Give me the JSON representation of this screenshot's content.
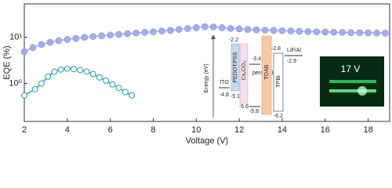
{
  "chart_data": {
    "type": "line",
    "x_label": "Voltage (V)",
    "y_label": "EQE (%)",
    "log_y": true,
    "xlim": [
      2,
      19
    ],
    "xticks": [
      2,
      4,
      6,
      8,
      10,
      12,
      14,
      16,
      18
    ],
    "ylim": [
      0.15,
      53
    ],
    "yticks": [
      {
        "value": 1,
        "label": "10⁰"
      },
      {
        "value": 10,
        "label": "10¹"
      }
    ],
    "series": [
      {
        "color": "#a9a9ee",
        "marker": "filled",
        "x": [
          2.0,
          2.4,
          2.8,
          3.2,
          3.6,
          4.0,
          4.4,
          4.8,
          5.2,
          5.6,
          6.0,
          6.4,
          6.8,
          7.2,
          7.6,
          8.0,
          8.4,
          8.8,
          9.2,
          9.6,
          10.0,
          10.4,
          10.8,
          11.2,
          11.6,
          12.0,
          12.4,
          12.8,
          13.2,
          13.6,
          14.0,
          14.4,
          14.8,
          15.2,
          15.6,
          16.0,
          16.4,
          16.8,
          17.2,
          17.6,
          18.0,
          18.4,
          18.8
        ],
        "values": [
          4.9,
          6.0,
          7.0,
          7.8,
          8.5,
          9.0,
          9.5,
          10.0,
          10.4,
          10.8,
          11.2,
          11.6,
          12.0,
          12.4,
          12.8,
          13.2,
          13.7,
          14.2,
          14.8,
          15.5,
          16.2,
          17.0,
          16.8,
          16.2,
          15.6,
          15.2,
          14.8,
          14.5,
          14.3,
          14.1,
          13.9,
          13.7,
          13.5,
          13.3,
          13.2,
          13.0,
          12.9,
          12.8,
          12.7,
          12.6,
          12.5,
          12.4,
          12.3
        ]
      },
      {
        "color": "#2a9fa8",
        "marker": "hollow",
        "x": [
          2.0,
          2.5,
          2.8,
          3.1,
          3.4,
          3.7,
          4.0,
          4.3,
          4.6,
          4.9,
          5.2,
          5.5,
          5.8,
          6.1,
          6.4,
          6.7,
          7.0
        ],
        "values": [
          0.55,
          0.75,
          1.0,
          1.4,
          1.8,
          2.0,
          2.1,
          2.05,
          1.95,
          1.8,
          1.6,
          1.35,
          1.15,
          0.95,
          0.8,
          0.65,
          0.55
        ]
      }
    ]
  },
  "inset": {
    "axis_label": "Energy (eV)",
    "ito": "ITO",
    "ito_level": "-4.8",
    "pedot": "PEDOT:PSS",
    "pedot_top": "-2.2",
    "pedot_bottom": "-5.1",
    "cs2co3": "Cs₂CO₃",
    "cs2co3_bottom": "-5.6",
    "perovskite": "perovskite",
    "perovskite_top": "-3.4",
    "perovskite_bottom": "-5.8",
    "toab": "TOAB",
    "tpbi": "TPBi",
    "tpbi_top": "-2.8",
    "tpbi_bottom": "-6.2",
    "cathode": "LiF/Al",
    "cathode_level": "-2.9",
    "photo_label": "17 V"
  }
}
